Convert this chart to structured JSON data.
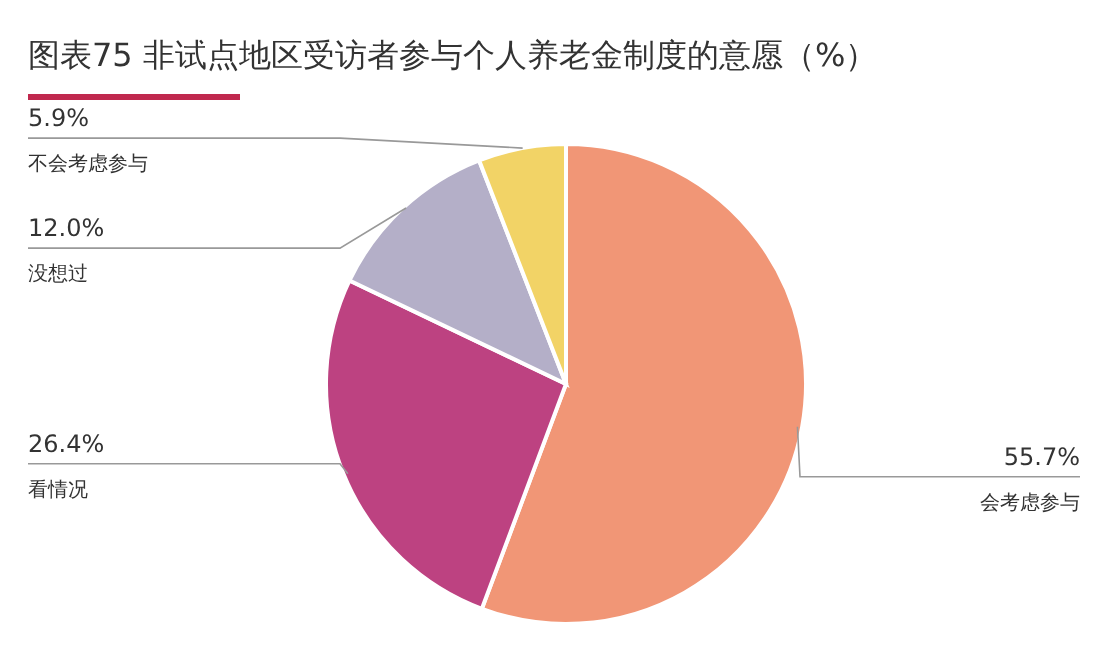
{
  "chart_data": {
    "type": "pie",
    "title": "图表75 非试点地区受访者参与个人养老金制度的意愿（%）",
    "categories": [
      "会考虑参与",
      "看情况",
      "没想过",
      "不会考虑参与"
    ],
    "values": [
      55.7,
      26.4,
      12.0,
      5.9
    ],
    "value_labels": [
      "55.7%",
      "26.4%",
      "12.0%",
      "5.9%"
    ],
    "colors": [
      "#f19676",
      "#bd4281",
      "#b4afc8",
      "#f2d366"
    ]
  }
}
